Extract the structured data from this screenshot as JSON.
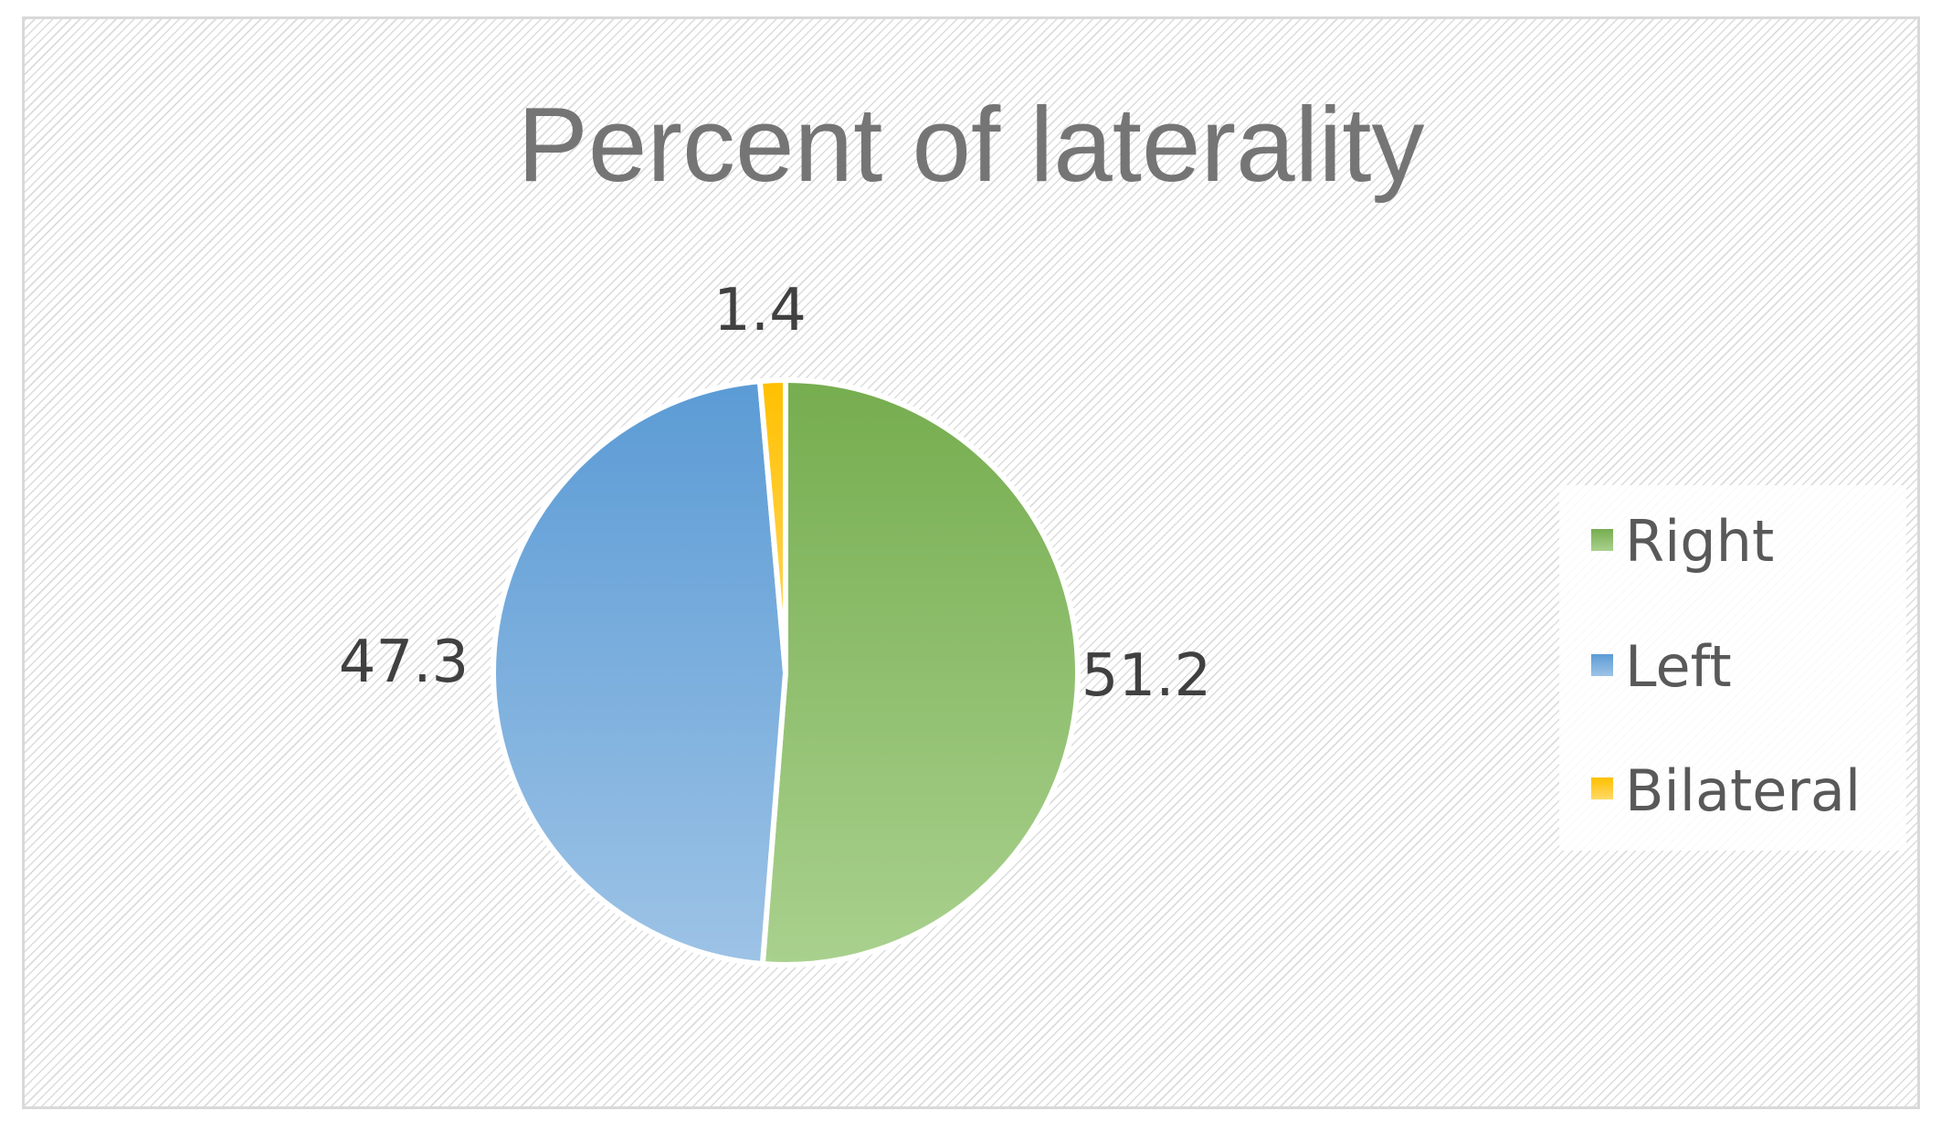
{
  "chart_data": {
    "type": "pie",
    "title": "Percent of laterality",
    "categories": [
      "Right",
      "Left",
      "Bilateral"
    ],
    "values": [
      51.2,
      47.3,
      1.4
    ],
    "data_labels": [
      "51.2",
      "47.3",
      "1.4"
    ],
    "colors": [
      "#76ad4f",
      "#5b9bd5",
      "#ffc000"
    ],
    "colors_light": [
      "#a9d18e",
      "#9dc3e6",
      "#ffd966"
    ],
    "legend": {
      "position": "right",
      "entries": [
        "Right",
        "Left",
        "Bilateral"
      ]
    }
  }
}
